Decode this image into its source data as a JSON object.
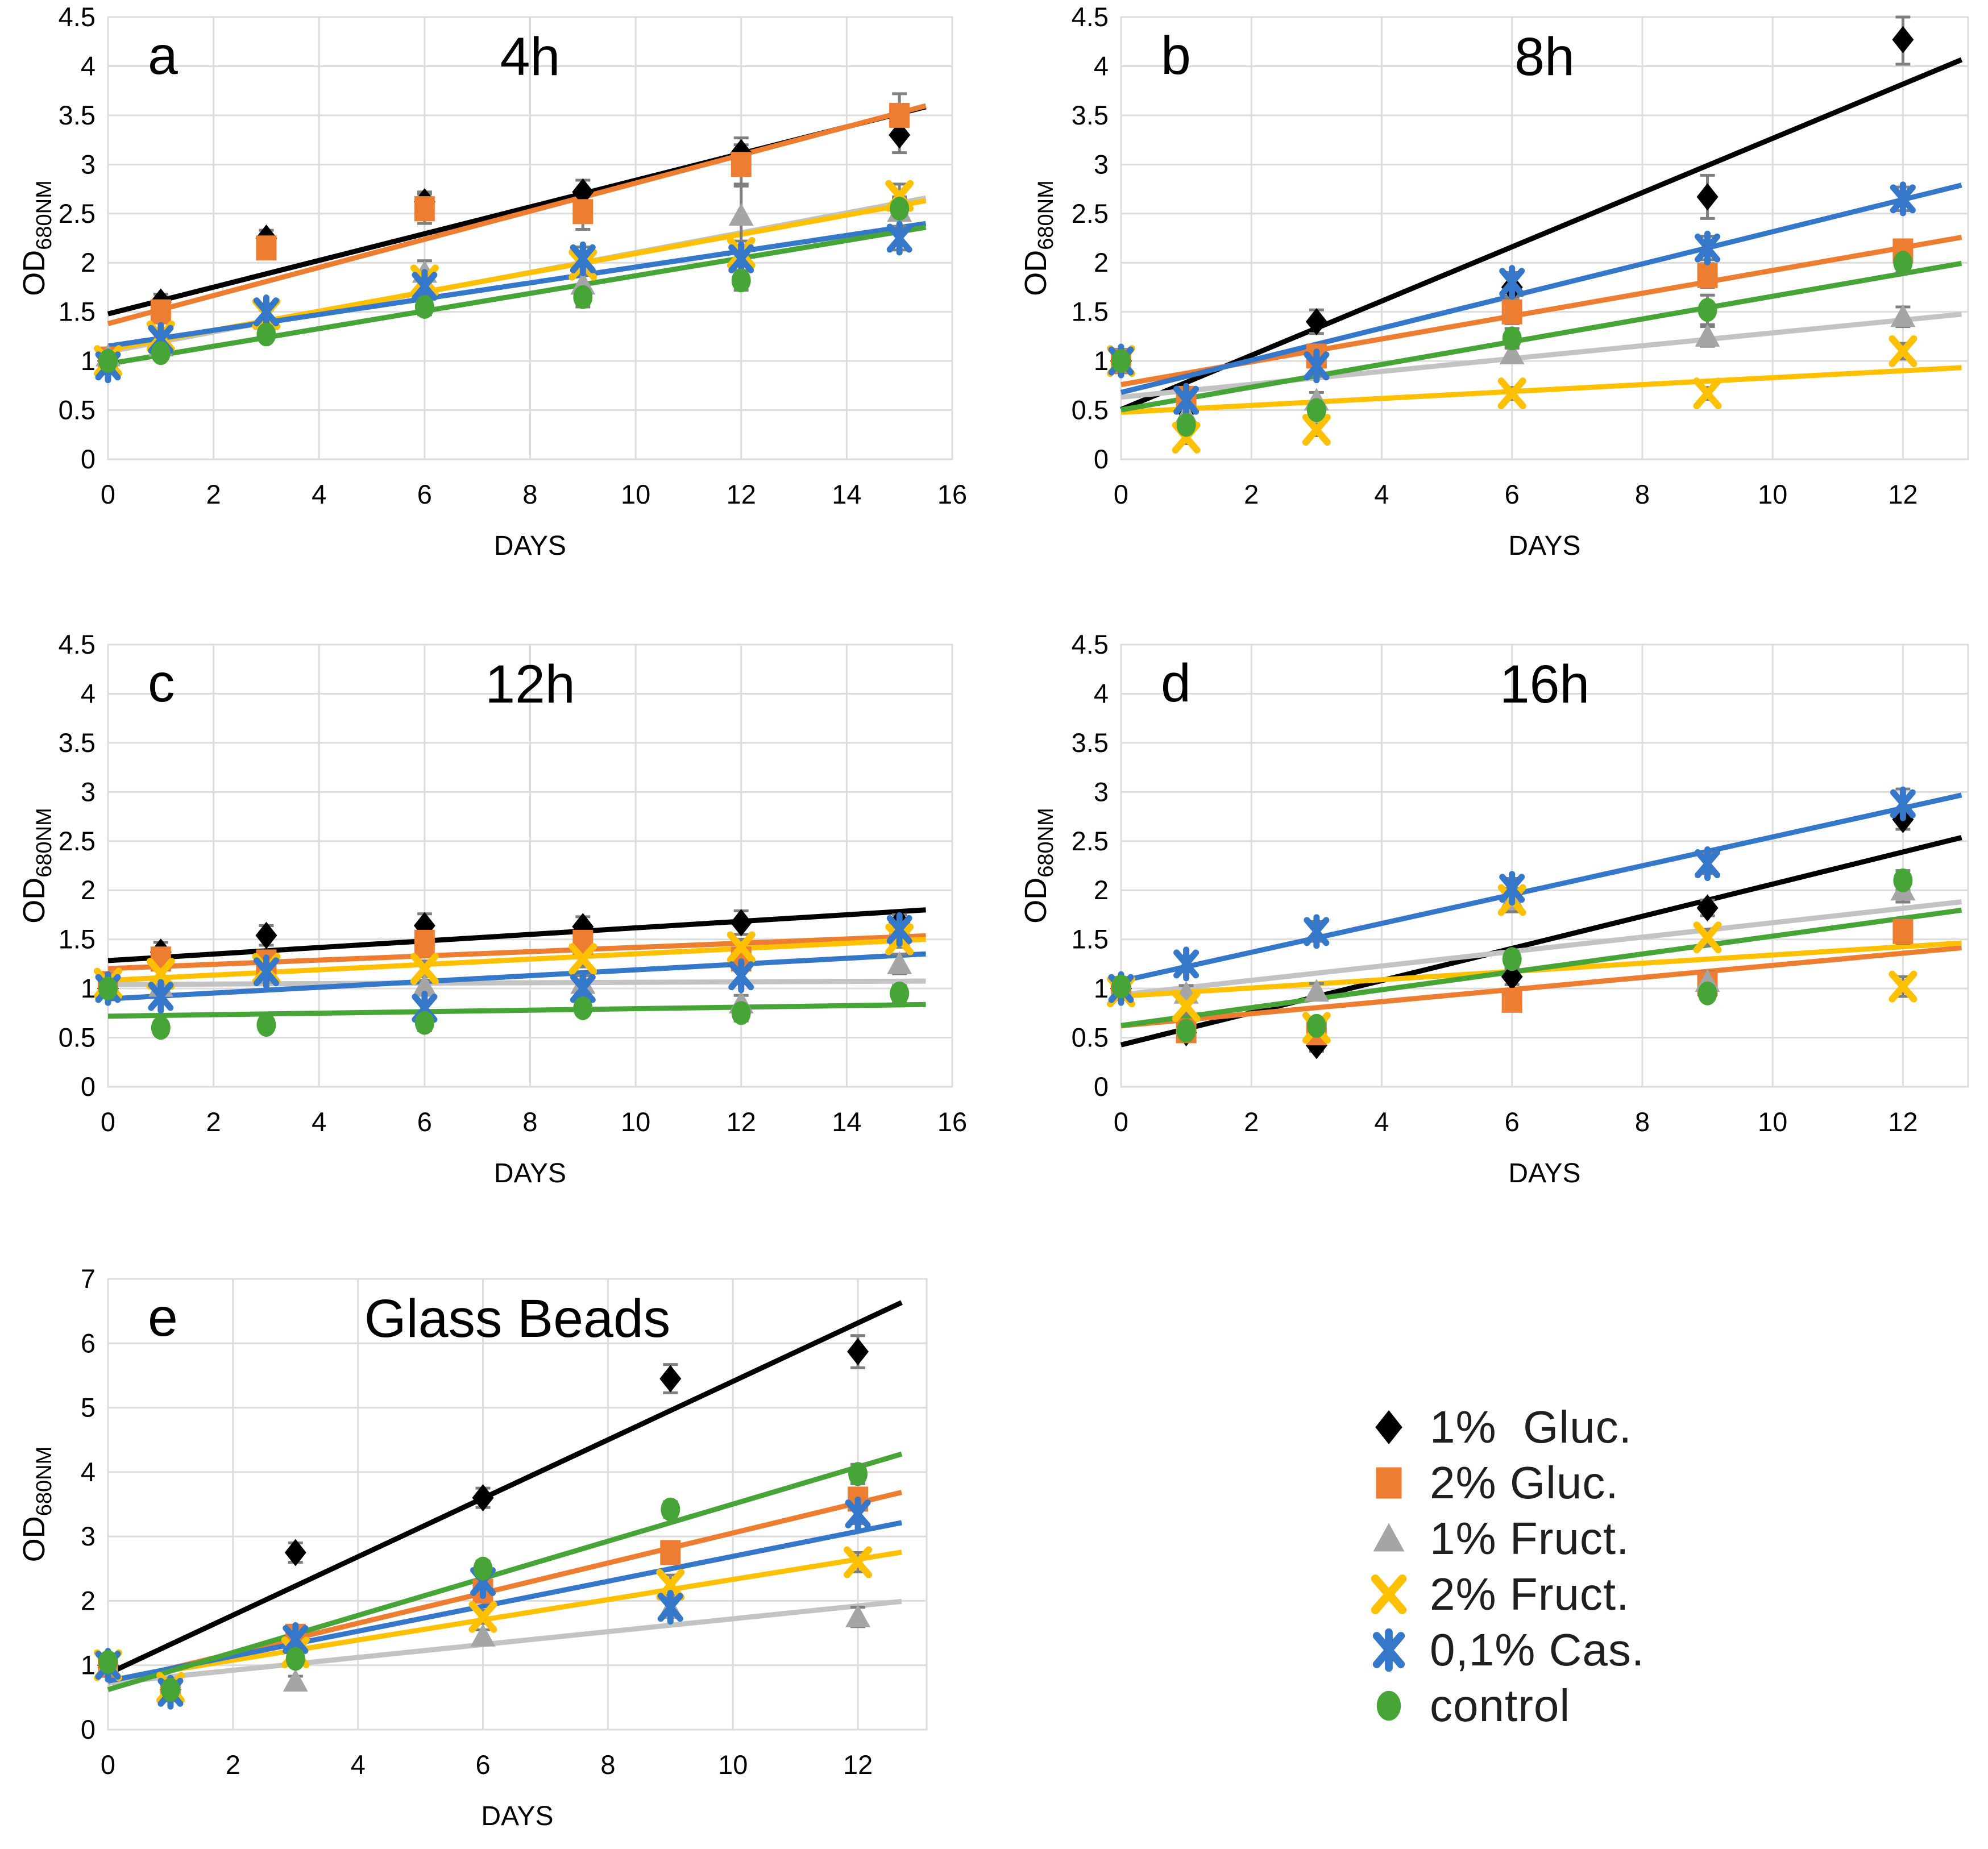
{
  "figure": {
    "ylabel_main": "OD",
    "ylabel_sub": "680NM",
    "xlabel": "DAYS"
  },
  "colors": {
    "gluc1": "#000000",
    "gluc2": "#ED7D31",
    "fruct1": "#A5A5A5",
    "fruct2": "#FFC000",
    "cas": "#3577C8",
    "control": "#47A437",
    "trend_fruct1": "#C3C3C3",
    "errorbar": "#7F7F7F",
    "grid": "#DCDCDC",
    "text": "#000000"
  },
  "legend": {
    "items": [
      {
        "key": "gluc1",
        "label": "1%  Gluc.",
        "marker": "diamond"
      },
      {
        "key": "gluc2",
        "label": "2% Gluc.",
        "marker": "square"
      },
      {
        "key": "fruct1",
        "label": "1% Fruct.",
        "marker": "triangle"
      },
      {
        "key": "fruct2",
        "label": "2% Fruct.",
        "marker": "xmark"
      },
      {
        "key": "cas",
        "label": "0,1% Cas.",
        "marker": "star"
      },
      {
        "key": "control",
        "label": "control",
        "marker": "circle"
      }
    ]
  },
  "chart_data": [
    {
      "id": "a",
      "type": "scatter",
      "panel": "a",
      "title": "4h",
      "xlabel": "DAYS",
      "ylabel": "OD680NM",
      "x_ticks": [
        0,
        2,
        4,
        6,
        8,
        10,
        12,
        14,
        16
      ],
      "x_max": 16,
      "trend_end": 15.5,
      "y_ticks": [
        0,
        0.5,
        1,
        1.5,
        2,
        2.5,
        3,
        3.5,
        4,
        4.5
      ],
      "y_max": 4.5,
      "days": [
        0,
        1,
        3,
        6,
        9,
        12,
        15
      ],
      "series": [
        {
          "key": "gluc1",
          "name": "1%  Gluc.",
          "marker": "diamond",
          "values": [
            1.0,
            1.6,
            2.25,
            2.62,
            2.72,
            3.12,
            3.3
          ],
          "err": [
            0.05,
            0.08,
            0.08,
            0.1,
            0.12,
            0.15,
            0.18
          ]
        },
        {
          "key": "gluc2",
          "name": "2% Gluc.",
          "marker": "square",
          "values": [
            1.02,
            1.5,
            2.15,
            2.55,
            2.52,
            3.0,
            3.5
          ],
          "err": [
            0.05,
            0.1,
            0.1,
            0.15,
            0.18,
            0.2,
            0.22
          ]
        },
        {
          "key": "fruct1",
          "name": "1% Fruct.",
          "marker": "triangle",
          "values": [
            1.05,
            1.15,
            1.42,
            1.9,
            1.78,
            2.48,
            2.52
          ],
          "err": [
            0.05,
            0.08,
            0.1,
            0.12,
            0.15,
            0.3,
            0.15
          ]
        },
        {
          "key": "fruct2",
          "name": "2% Fruct.",
          "marker": "xmark",
          "values": [
            1.0,
            1.25,
            1.48,
            1.82,
            1.98,
            2.1,
            2.68
          ],
          "err": [
            0.05,
            0.06,
            0.08,
            0.1,
            0.1,
            0.12,
            0.12
          ]
        },
        {
          "key": "cas",
          "name": "0,1% Cas.",
          "marker": "star",
          "values": [
            0.95,
            1.22,
            1.5,
            1.76,
            2.04,
            2.04,
            2.25
          ],
          "err": [
            0.08,
            0.06,
            0.08,
            0.1,
            0.12,
            0.12,
            0.12
          ]
        },
        {
          "key": "control",
          "name": "control",
          "marker": "circle",
          "values": [
            1.0,
            1.08,
            1.27,
            1.55,
            1.65,
            1.82,
            2.55
          ],
          "err": [
            0.05,
            0.05,
            0.06,
            0.08,
            0.1,
            0.1,
            0.1
          ]
        }
      ]
    },
    {
      "id": "b",
      "type": "scatter",
      "panel": "b",
      "title": "8h",
      "xlabel": "DAYS",
      "ylabel": "OD680NM",
      "x_ticks": [
        0,
        2,
        4,
        6,
        8,
        10,
        12
      ],
      "x_max": 13,
      "trend_end": 12.9,
      "y_ticks": [
        0,
        0.5,
        1,
        1.5,
        2,
        2.5,
        3,
        3.5,
        4,
        4.5
      ],
      "y_max": 4.5,
      "days": [
        0,
        1,
        3,
        6,
        9,
        12
      ],
      "series": [
        {
          "key": "gluc1",
          "name": "1%  Gluc.",
          "marker": "diamond",
          "values": [
            1.0,
            0.5,
            1.4,
            1.75,
            2.67,
            4.27
          ],
          "err": [
            0.12,
            0.08,
            0.12,
            0.1,
            0.22,
            0.25
          ]
        },
        {
          "key": "gluc2",
          "name": "2% Gluc.",
          "marker": "square",
          "values": [
            1.0,
            0.62,
            1.05,
            1.5,
            1.87,
            2.12
          ],
          "err": [
            0.1,
            0.08,
            0.08,
            0.12,
            0.12,
            0.1
          ]
        },
        {
          "key": "fruct1",
          "name": "1% Fruct.",
          "marker": "triangle",
          "values": [
            1.0,
            0.45,
            0.6,
            1.07,
            1.25,
            1.45
          ],
          "err": [
            0.1,
            0.1,
            0.08,
            0.08,
            0.1,
            0.1
          ]
        },
        {
          "key": "fruct2",
          "name": "2% Fruct.",
          "marker": "xmark",
          "values": [
            1.0,
            0.22,
            0.3,
            0.67,
            0.67,
            1.1
          ],
          "err": [
            0.08,
            0.06,
            0.06,
            0.06,
            0.06,
            0.08
          ]
        },
        {
          "key": "cas",
          "name": "0,1% Cas.",
          "marker": "star",
          "values": [
            1.0,
            0.6,
            0.95,
            1.8,
            2.15,
            2.65
          ],
          "err": [
            0.1,
            0.06,
            0.1,
            0.1,
            0.12,
            0.12
          ]
        },
        {
          "key": "control",
          "name": "control",
          "marker": "circle",
          "values": [
            1.0,
            0.35,
            0.5,
            1.23,
            1.52,
            2.0
          ],
          "err": [
            0.08,
            0.06,
            0.06,
            0.1,
            0.15,
            0.1
          ]
        }
      ]
    },
    {
      "id": "c",
      "type": "scatter",
      "panel": "c",
      "title": "12h",
      "xlabel": "DAYS",
      "ylabel": "OD680NM",
      "x_ticks": [
        0,
        2,
        4,
        6,
        8,
        10,
        12,
        14,
        16
      ],
      "x_max": 16,
      "trend_end": 15.5,
      "y_ticks": [
        0,
        0.5,
        1,
        1.5,
        2,
        2.5,
        3,
        3.5,
        4,
        4.5
      ],
      "y_max": 4.5,
      "days": [
        0,
        1,
        3,
        6,
        9,
        12,
        15
      ],
      "series": [
        {
          "key": "gluc1",
          "name": "1%  Gluc.",
          "marker": "diamond",
          "values": [
            1.0,
            1.37,
            1.54,
            1.64,
            1.63,
            1.67,
            1.67
          ],
          "err": [
            0.06,
            0.1,
            0.1,
            0.12,
            0.1,
            0.12,
            0.08
          ]
        },
        {
          "key": "gluc2",
          "name": "2% Gluc.",
          "marker": "square",
          "values": [
            1.05,
            1.3,
            1.27,
            1.47,
            1.47,
            1.3,
            1.55
          ],
          "err": [
            0.06,
            0.08,
            0.08,
            0.1,
            0.12,
            0.1,
            0.1
          ]
        },
        {
          "key": "fruct1",
          "name": "1% Fruct.",
          "marker": "triangle",
          "values": [
            1.05,
            1.02,
            1.15,
            1.02,
            1.05,
            0.85,
            1.25
          ],
          "err": [
            0.06,
            0.06,
            0.08,
            0.06,
            0.08,
            0.08,
            0.1
          ]
        },
        {
          "key": "fruct2",
          "name": "2% Fruct.",
          "marker": "xmark",
          "values": [
            1.05,
            1.15,
            1.2,
            1.2,
            1.3,
            1.42,
            1.5
          ],
          "err": [
            0.06,
            0.06,
            0.08,
            0.08,
            0.08,
            0.08,
            0.08
          ]
        },
        {
          "key": "cas",
          "name": "0,1% Cas.",
          "marker": "star",
          "values": [
            1.0,
            0.92,
            1.17,
            0.8,
            1.0,
            1.13,
            1.6
          ],
          "err": [
            0.06,
            0.06,
            0.08,
            0.06,
            0.08,
            0.08,
            0.1
          ]
        },
        {
          "key": "control",
          "name": "control",
          "marker": "circle",
          "values": [
            1.0,
            0.6,
            0.63,
            0.65,
            0.8,
            0.75,
            0.95
          ],
          "err": [
            0.05,
            0.06,
            0.05,
            0.08,
            0.05,
            0.08,
            0.08
          ]
        }
      ]
    },
    {
      "id": "d",
      "type": "scatter",
      "panel": "d",
      "title": "16h",
      "xlabel": "DAYS",
      "ylabel": "OD680NM",
      "x_ticks": [
        0,
        2,
        4,
        6,
        8,
        10,
        12
      ],
      "x_max": 13,
      "trend_end": 12.9,
      "y_ticks": [
        0,
        0.5,
        1,
        1.5,
        2,
        2.5,
        3,
        3.5,
        4,
        4.5
      ],
      "y_max": 4.5,
      "days": [
        0,
        1,
        3,
        6,
        9,
        12
      ],
      "series": [
        {
          "key": "gluc1",
          "name": "1%  Gluc.",
          "marker": "diamond",
          "values": [
            1.0,
            0.55,
            0.42,
            1.12,
            1.82,
            2.72
          ],
          "err": [
            0.06,
            0.06,
            0.06,
            0.08,
            0.08,
            0.1
          ]
        },
        {
          "key": "gluc2",
          "name": "2% Gluc.",
          "marker": "square",
          "values": [
            1.0,
            0.57,
            0.55,
            0.88,
            1.05,
            1.58
          ],
          "err": [
            0.06,
            0.06,
            0.06,
            0.06,
            0.08,
            0.12
          ]
        },
        {
          "key": "fruct1",
          "name": "1% Fruct.",
          "marker": "triangle",
          "values": [
            1.0,
            0.95,
            0.97,
            1.9,
            1.07,
            2.0
          ],
          "err": [
            0.06,
            0.08,
            0.08,
            0.12,
            0.1,
            0.12
          ]
        },
        {
          "key": "fruct2",
          "name": "2% Fruct.",
          "marker": "xmark",
          "values": [
            0.97,
            0.82,
            0.6,
            1.9,
            1.52,
            1.02
          ],
          "err": [
            0.06,
            0.08,
            0.06,
            0.1,
            0.08,
            0.1
          ]
        },
        {
          "key": "cas",
          "name": "0,1% Cas.",
          "marker": "star",
          "values": [
            1.0,
            1.25,
            1.58,
            2.02,
            2.27,
            2.88
          ],
          "err": [
            0.08,
            0.08,
            0.1,
            0.1,
            0.1,
            0.15
          ]
        },
        {
          "key": "control",
          "name": "control",
          "marker": "circle",
          "values": [
            1.02,
            0.57,
            0.62,
            1.3,
            0.95,
            2.1
          ],
          "err": [
            0.06,
            0.06,
            0.06,
            0.08,
            0.06,
            0.1
          ]
        }
      ]
    },
    {
      "id": "e",
      "type": "scatter",
      "panel": "e",
      "title": "Glass Beads",
      "xlabel": "DAYS",
      "ylabel": "OD680NM",
      "x_ticks": [
        0,
        2,
        4,
        6,
        8,
        10,
        12
      ],
      "x_max": 13.1,
      "trend_end": 12.7,
      "y_ticks": [
        0,
        1,
        2,
        3,
        4,
        5,
        6,
        7
      ],
      "y_max": 7,
      "days": [
        0,
        1,
        3,
        6,
        9,
        12
      ],
      "series": [
        {
          "key": "gluc1",
          "name": "1%  Gluc.",
          "marker": "diamond",
          "values": [
            1.0,
            0.62,
            2.75,
            3.6,
            5.45,
            5.87
          ],
          "err": [
            0.08,
            0.06,
            0.15,
            0.15,
            0.22,
            0.25
          ]
        },
        {
          "key": "gluc2",
          "name": "2% Gluc.",
          "marker": "square",
          "values": [
            1.0,
            0.62,
            1.45,
            2.15,
            2.75,
            3.58
          ],
          "err": [
            0.08,
            0.06,
            0.1,
            0.12,
            0.15,
            0.15
          ]
        },
        {
          "key": "fruct1",
          "name": "1% Fruct.",
          "marker": "triangle",
          "values": [
            1.0,
            0.6,
            0.75,
            1.45,
            1.88,
            1.75
          ],
          "err": [
            0.08,
            0.06,
            0.08,
            0.1,
            0.12,
            0.15
          ]
        },
        {
          "key": "fruct2",
          "name": "2% Fruct.",
          "marker": "xmark",
          "values": [
            1.0,
            0.65,
            1.2,
            1.75,
            2.25,
            2.6
          ],
          "err": [
            0.08,
            0.06,
            0.08,
            0.1,
            0.15,
            0.15
          ]
        },
        {
          "key": "cas",
          "name": "0,1% Cas.",
          "marker": "star",
          "values": [
            1.0,
            0.58,
            1.4,
            2.3,
            1.9,
            3.35
          ],
          "err": [
            0.08,
            0.06,
            0.1,
            0.12,
            0.15,
            0.15
          ]
        },
        {
          "key": "control",
          "name": "control",
          "marker": "circle",
          "values": [
            1.05,
            0.62,
            1.1,
            2.5,
            3.42,
            3.97
          ],
          "err": [
            0.08,
            0.06,
            0.08,
            0.12,
            0.12,
            0.15
          ]
        }
      ]
    }
  ]
}
